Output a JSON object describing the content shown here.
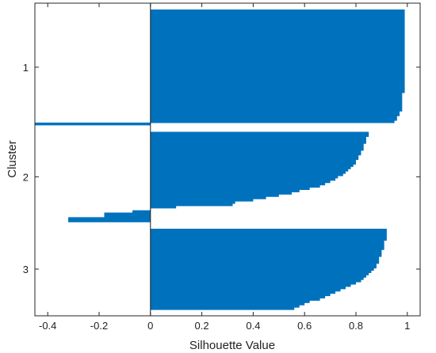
{
  "chart_data": {
    "type": "bar",
    "orientation": "horizontal",
    "title": "",
    "xlabel": "Silhouette Value",
    "ylabel": "Cluster",
    "xlim": [
      -0.45,
      1.05
    ],
    "xticks": [
      -0.4,
      -0.2,
      0,
      0.2,
      0.4,
      0.6,
      0.8,
      1
    ],
    "xtick_labels": [
      "-0.4",
      "-0.2",
      "0",
      "0.2",
      "0.4",
      "0.6",
      "0.8",
      "1"
    ],
    "ytick_labels": [
      "1",
      "2",
      "3"
    ],
    "grid": false,
    "legend": "none",
    "bar_color": "#0072BD",
    "clusters": [
      {
        "label": "1",
        "values": [
          0.99,
          0.99,
          0.99,
          0.99,
          0.99,
          0.99,
          0.99,
          0.99,
          0.99,
          0.99,
          0.99,
          0.99,
          0.99,
          0.99,
          0.99,
          0.99,
          0.99,
          0.99,
          0.99,
          0.99,
          0.99,
          0.99,
          0.99,
          0.99,
          0.99,
          0.99,
          0.99,
          0.99,
          0.99,
          0.99,
          0.99,
          0.99,
          0.99,
          0.99,
          0.99,
          0.99,
          0.98,
          0.98,
          0.98,
          0.98,
          0.98,
          0.98,
          0.98,
          0.98,
          0.97,
          0.97,
          0.96,
          0.96,
          0.95,
          -0.45
        ]
      },
      {
        "label": "2",
        "values": [
          0.85,
          0.85,
          0.84,
          0.84,
          0.84,
          0.83,
          0.83,
          0.83,
          0.82,
          0.82,
          0.81,
          0.81,
          0.8,
          0.8,
          0.79,
          0.78,
          0.77,
          0.76,
          0.75,
          0.73,
          0.72,
          0.7,
          0.68,
          0.66,
          0.62,
          0.58,
          0.55,
          0.5,
          0.45,
          0.4,
          0.33,
          0.32,
          0.1,
          0.0,
          -0.07,
          -0.18,
          -0.18,
          -0.32,
          -0.32
        ]
      },
      {
        "label": "3",
        "values": [
          0.92,
          0.92,
          0.92,
          0.92,
          0.92,
          0.91,
          0.91,
          0.91,
          0.91,
          0.9,
          0.9,
          0.9,
          0.89,
          0.89,
          0.89,
          0.88,
          0.88,
          0.87,
          0.86,
          0.85,
          0.84,
          0.83,
          0.82,
          0.8,
          0.78,
          0.76,
          0.74,
          0.72,
          0.7,
          0.68,
          0.66,
          0.62,
          0.6,
          0.58,
          0.56
        ]
      }
    ]
  }
}
